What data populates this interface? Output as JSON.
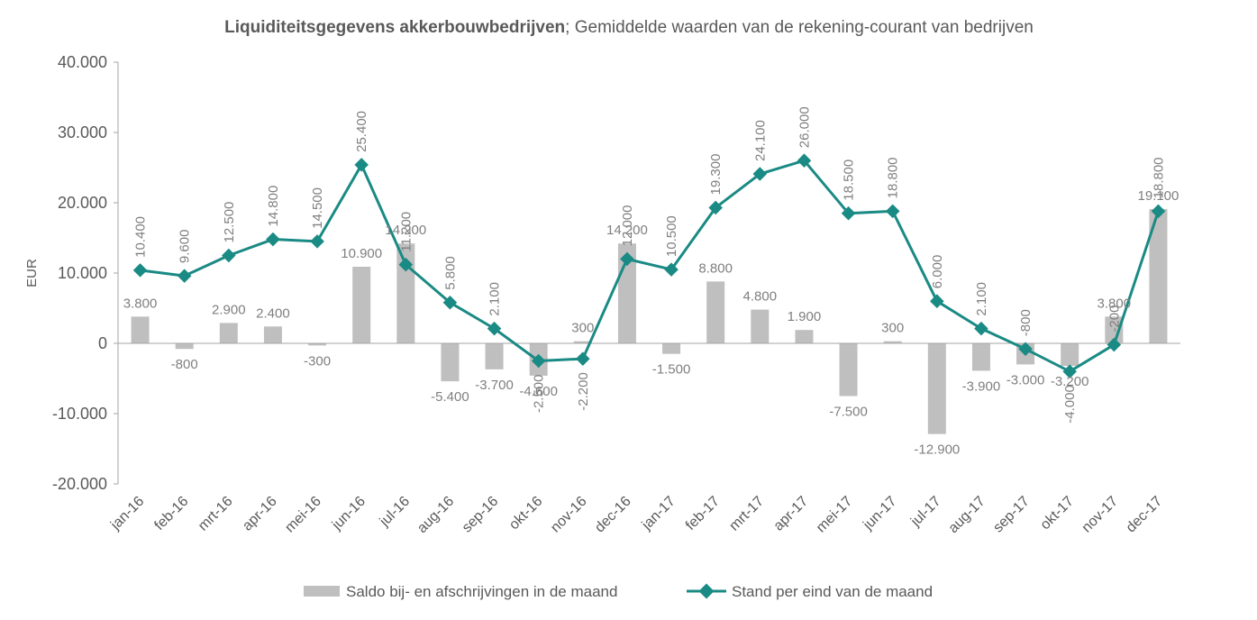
{
  "chart_data": {
    "type": "bar+line",
    "title_bold": "Liquiditeitsgegevens akkerbouwbedrijven",
    "title_rest": "; Gemiddelde waarden van de rekening-courant van bedrijven",
    "ylabel": "EUR",
    "ylim": [
      -20000,
      40000
    ],
    "yticks": [
      40000,
      30000,
      20000,
      10000,
      0,
      -10000,
      -20000
    ],
    "ytick_labels": [
      "40.000",
      "30.000",
      "20.000",
      "10.000",
      "0",
      "-10.000",
      "-20.000"
    ],
    "categories": [
      "jan-16",
      "feb-16",
      "mrt-16",
      "apr-16",
      "mei-16",
      "jun-16",
      "jul-16",
      "aug-16",
      "sep-16",
      "okt-16",
      "nov-16",
      "dec-16",
      "jan-17",
      "feb-17",
      "mrt-17",
      "apr-17",
      "mei-17",
      "jun-17",
      "jul-17",
      "aug-17",
      "sep-17",
      "okt-17",
      "nov-17",
      "dec-17"
    ],
    "series": [
      {
        "name": "Saldo bij- en afschrijvingen in de maand",
        "kind": "bar",
        "color": "#bfbfbf",
        "values": [
          3800,
          -800,
          2900,
          2400,
          -300,
          10900,
          14200,
          -5400,
          -3700,
          -4600,
          300,
          14200,
          -1500,
          8800,
          4800,
          1900,
          -7500,
          300,
          -12900,
          -3900,
          -3000,
          -3200,
          3800,
          19100
        ],
        "labels": [
          "3.800",
          "-800",
          "2.900",
          "2.400",
          "-300",
          "10.900",
          "14.200",
          "-5.400",
          "-3.700",
          "-4.600",
          "300",
          "14.200",
          "-1.500",
          "8.800",
          "4.800",
          "1.900",
          "-7.500",
          "300",
          "-12.900",
          "-3.900",
          "-3.000",
          "-3.200",
          "3.800",
          "19.100"
        ]
      },
      {
        "name": "Stand per eind van de maand",
        "kind": "line",
        "color": "#1a8a84",
        "values": [
          10400,
          9600,
          12500,
          14800,
          14500,
          25400,
          11200,
          5800,
          2100,
          -2500,
          -2200,
          12000,
          10500,
          19300,
          24100,
          26000,
          18500,
          18800,
          6000,
          2100,
          -800,
          -4000,
          -200,
          18800
        ],
        "labels": [
          "10.400",
          "9.600",
          "12.500",
          "14.800",
          "14.500",
          "25.400",
          "11.200",
          "5.800",
          "2.100",
          "-2.500",
          "-2.200",
          "12.000",
          "10.500",
          "19.300",
          "24.100",
          "26.000",
          "18.500",
          "18.800",
          "6.000",
          "2.100",
          "-800",
          "-4.000",
          "-200",
          "18.800"
        ]
      }
    ],
    "legend_position": "bottom",
    "grid": false
  }
}
